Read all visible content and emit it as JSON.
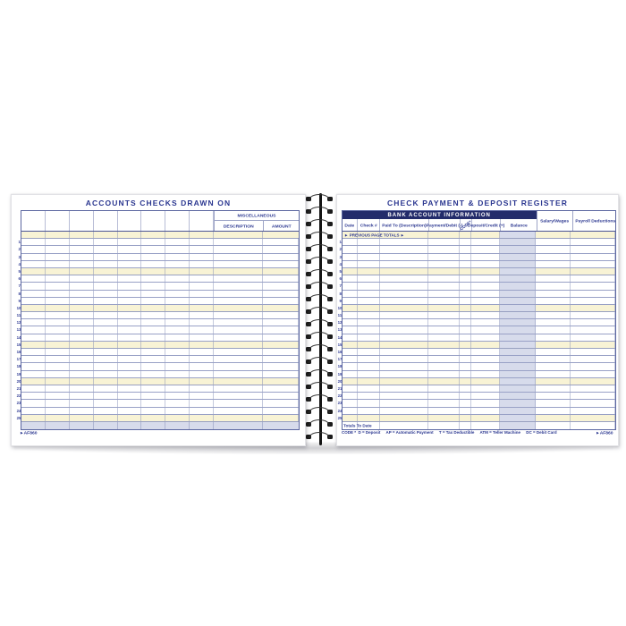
{
  "product": {
    "sku": "AF860"
  },
  "colors": {
    "navy_text": "#2b3790",
    "bar_navy": "#232c6b",
    "row_yellow": "#f8f3d5",
    "shade_lavender": "#d7dbeb",
    "grid_line": "#8791bc",
    "spiral_black": "#1a1a1a"
  },
  "rows": {
    "numbers": [
      1,
      2,
      3,
      4,
      5,
      6,
      7,
      8,
      9,
      10,
      11,
      12,
      13,
      14,
      15,
      16,
      17,
      18,
      19,
      20,
      21,
      22,
      23,
      24,
      25
    ],
    "yellow_every": 5
  },
  "left_page": {
    "title": "ACCOUNTS CHECKS DRAWN ON",
    "blank_column_count": 8,
    "misc_header": "MISCELLANEOUS",
    "misc_columns": [
      "DESCRIPTION",
      "AMOUNT"
    ],
    "sku_label": "AF860"
  },
  "right_page": {
    "title": "CHECK PAYMENT & DEPOSIT REGISTER",
    "bank_bar": "BANK ACCOUNT INFORMATION",
    "columns": [
      "Date",
      "Check #",
      "Paid To (Description)",
      "Payment/Debit (-)",
      "CODE*",
      "Deposit/Credit (+)",
      "Balance"
    ],
    "extra_columns": [
      "Salary/Wages",
      "Payroll Deductions"
    ],
    "previous_totals_label": "► PREVIOUS PAGE TOTALS ►",
    "totals_label": "Totals To Date",
    "code_legend": "CODE *  D = Deposit     AP = Automatic Payment     T = Tax Deductible     ATM = Teller Machine     DC = Debit Card",
    "sku_label": "AF860"
  }
}
